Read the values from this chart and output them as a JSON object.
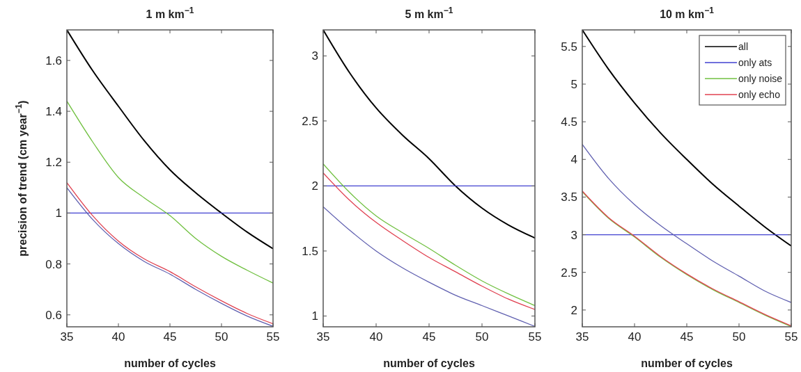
{
  "chart_data": [
    {
      "type": "line",
      "title": "1 m km$^{−1}$",
      "xlabel": "number of cycles",
      "ylabel": "precision of trend (cm year$^{−1}$)",
      "x": [
        35,
        37.5,
        40,
        42.5,
        45,
        47.5,
        50,
        52.5,
        55
      ],
      "xlim": [
        35,
        55
      ],
      "xticks": [
        35,
        40,
        45,
        50,
        55
      ],
      "ylim": [
        0.553,
        1.72
      ],
      "yticks": [
        0.6,
        0.8,
        1,
        1.2,
        1.4,
        1.6
      ],
      "grid": false,
      "legend": false,
      "series": [
        {
          "color": "#000000",
          "values": [
            1.72,
            1.56,
            1.42,
            1.285,
            1.17,
            1.08,
            1.0,
            0.925,
            0.86
          ]
        },
        {
          "color": "#4040d0",
          "values": [
            1,
            1,
            1,
            1,
            1,
            1,
            1,
            1,
            1
          ]
        },
        {
          "color": "#70c040",
          "values": [
            1.44,
            1.28,
            1.14,
            1.06,
            0.99,
            0.9,
            0.83,
            0.775,
            0.725
          ]
        },
        {
          "color": "#e04050",
          "values": [
            1.12,
            0.99,
            0.89,
            0.82,
            0.77,
            0.71,
            0.655,
            0.605,
            0.565
          ]
        },
        {
          "color": "#6060b0",
          "values": [
            1.1,
            0.975,
            0.88,
            0.81,
            0.76,
            0.7,
            0.645,
            0.595,
            0.555
          ]
        }
      ]
    },
    {
      "type": "line",
      "title": "5 m km$^{−1}$",
      "xlabel": "number of cycles",
      "x": [
        35,
        37.5,
        40,
        42.5,
        45,
        47.5,
        50,
        52.5,
        55
      ],
      "xlim": [
        35,
        55
      ],
      "xticks": [
        35,
        40,
        45,
        50,
        55
      ],
      "ylim": [
        0.917,
        3.2
      ],
      "yticks": [
        1,
        1.5,
        2,
        2.5,
        3
      ],
      "grid": false,
      "legend": false,
      "series": [
        {
          "color": "#000000",
          "values": [
            3.2,
            2.87,
            2.6,
            2.39,
            2.21,
            2.0,
            1.83,
            1.7,
            1.6
          ]
        },
        {
          "color": "#4040d0",
          "values": [
            2,
            2,
            2,
            2,
            2,
            2,
            2,
            2,
            2
          ]
        },
        {
          "color": "#70c040",
          "values": [
            2.17,
            1.95,
            1.77,
            1.64,
            1.52,
            1.39,
            1.27,
            1.17,
            1.08
          ]
        },
        {
          "color": "#e04050",
          "values": [
            2.1,
            1.89,
            1.72,
            1.58,
            1.45,
            1.34,
            1.23,
            1.13,
            1.05
          ]
        },
        {
          "color": "#6060b0",
          "values": [
            1.84,
            1.66,
            1.5,
            1.37,
            1.26,
            1.16,
            1.08,
            1.0,
            0.92
          ]
        }
      ]
    },
    {
      "type": "line",
      "title": "10 m km$^{−1}$",
      "xlabel": "number of cycles",
      "x": [
        35,
        37.5,
        40,
        42.5,
        45,
        47.5,
        50,
        52.5,
        55
      ],
      "xlim": [
        35,
        55
      ],
      "xticks": [
        35,
        40,
        45,
        50,
        55
      ],
      "ylim": [
        1.777,
        5.72
      ],
      "yticks": [
        2,
        2.5,
        3,
        3.5,
        4,
        4.5,
        5,
        5.5
      ],
      "grid": false,
      "legend": "top right",
      "series": [
        {
          "name": "all",
          "color": "#000000",
          "values": [
            5.72,
            5.2,
            4.75,
            4.35,
            4.0,
            3.67,
            3.38,
            3.1,
            2.85
          ]
        },
        {
          "name": "only ats",
          "color": "#4040d0",
          "values": [
            3,
            3,
            3,
            3,
            3,
            3,
            3,
            3,
            3
          ]
        },
        {
          "name": "only noise",
          "color": "#70c040",
          "values": [
            3.57,
            3.22,
            2.97,
            2.7,
            2.47,
            2.27,
            2.1,
            1.93,
            1.78
          ]
        },
        {
          "name": "only echo",
          "color": "#e04050",
          "values": [
            3.58,
            3.23,
            2.98,
            2.71,
            2.48,
            2.28,
            2.11,
            1.94,
            1.79
          ]
        },
        {
          "color": "#6060b0",
          "values": [
            4.2,
            3.75,
            3.4,
            3.12,
            2.88,
            2.65,
            2.45,
            2.25,
            2.1
          ]
        }
      ]
    }
  ]
}
